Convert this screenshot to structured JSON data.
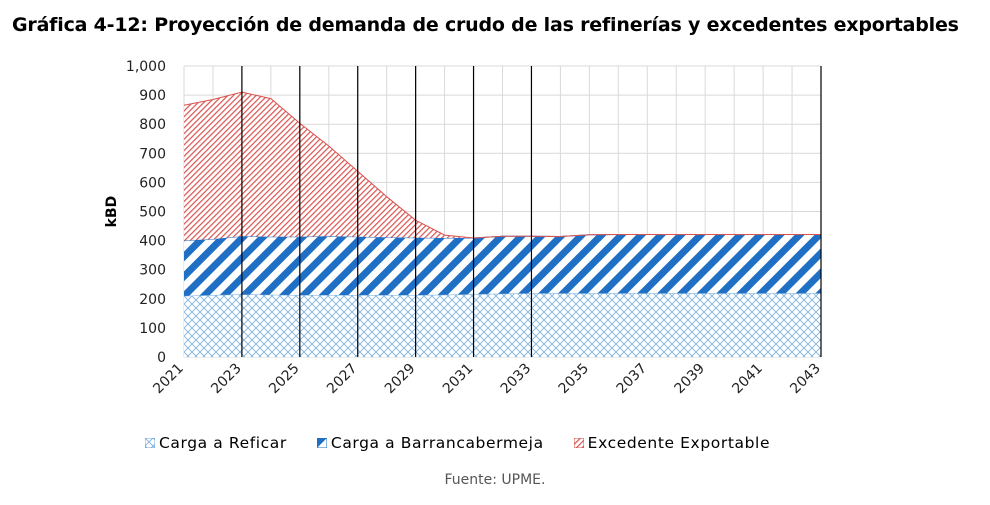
{
  "title": "Gráfica 4-12: Proyección de demanda de crudo de las refinerías y excedentes exportables",
  "source": "Fuente: UPME.",
  "chart_data": {
    "type": "area",
    "stacked": true,
    "ylabel": "kBD",
    "ylim": [
      0,
      1000
    ],
    "yticks": [
      0,
      100,
      200,
      300,
      400,
      500,
      600,
      700,
      800,
      900,
      1000
    ],
    "ytick_labels": [
      "0",
      "100",
      "200",
      "300",
      "400",
      "500",
      "600",
      "700",
      "800",
      "900",
      "1,000"
    ],
    "x": [
      2021,
      2022,
      2023,
      2024,
      2025,
      2026,
      2027,
      2028,
      2029,
      2030,
      2031,
      2032,
      2033,
      2034,
      2035,
      2036,
      2037,
      2038,
      2039,
      2040,
      2041,
      2042,
      2043
    ],
    "xtick_labels": [
      "2021",
      "2023",
      "2025",
      "2027",
      "2029",
      "2031",
      "2033",
      "2035",
      "2037",
      "2039",
      "2041",
      "2043"
    ],
    "vertical_lines_at": [
      2023,
      2025,
      2027,
      2029,
      2031,
      2033,
      2043
    ],
    "grid": true,
    "legend_position": "bottom",
    "series": [
      {
        "name": "Carga a Reficar",
        "color": "#6fa8dc",
        "pattern": "crosshatch",
        "values": [
          210,
          213,
          215,
          214,
          213,
          213,
          213,
          213,
          213,
          214,
          216,
          218,
          219,
          219,
          219,
          219,
          219,
          219,
          219,
          219,
          219,
          219,
          219
        ]
      },
      {
        "name": "Carga a Barrancabermeja",
        "color": "#1f6fc5",
        "pattern": "diagonal-wide",
        "values": [
          190,
          192,
          200,
          199,
          200,
          202,
          200,
          198,
          197,
          195,
          193,
          197,
          196,
          195,
          201,
          202,
          202,
          202,
          202,
          202,
          202,
          202,
          202
        ]
      },
      {
        "name": "Excedente Exportable",
        "color": "#d9534f",
        "pattern": "diagonal-fine",
        "values": [
          465,
          480,
          495,
          475,
          390,
          310,
          225,
          140,
          60,
          10,
          0,
          0,
          0,
          0,
          0,
          0,
          0,
          0,
          0,
          0,
          0,
          0,
          0
        ]
      }
    ]
  }
}
